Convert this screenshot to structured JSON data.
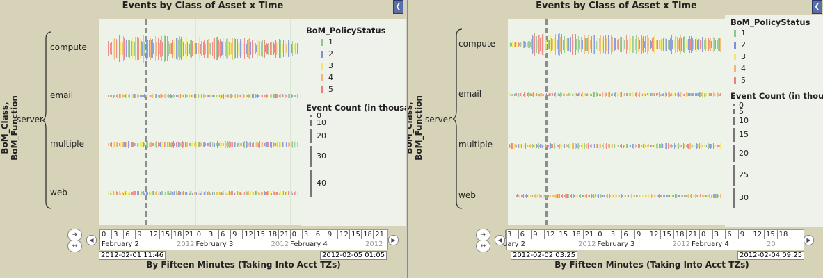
{
  "panels": [
    {
      "title": "Events by Class of Asset x Time",
      "y_title": "BoM_Class, BoM_Function",
      "x_title": "By Fifteen Minutes (Taking Into Acct TZs)",
      "group": "server",
      "rows": [
        "compute",
        "email",
        "multiple",
        "web"
      ],
      "legend_color_title": "BoM_PolicyStatus",
      "legend_color_items": [
        "1",
        "2",
        "3",
        "4",
        "5"
      ],
      "legend_size_title": "Event Count (in thousa",
      "legend_size_items": [
        "0",
        "10",
        "20",
        "30",
        "40"
      ],
      "hour_ticks": [
        "0",
        "3",
        "6",
        "9",
        "12",
        "15",
        "18",
        "21",
        "0",
        "3",
        "6",
        "9",
        "12",
        "15",
        "18",
        "21",
        "0",
        "3",
        "6",
        "9",
        "12",
        "15",
        "18",
        "21"
      ],
      "dates": [
        {
          "label": "February 2",
          "year": "2012"
        },
        {
          "label": "February 3",
          "year": "2012"
        },
        {
          "label": "February 4",
          "year": "2012"
        }
      ],
      "range_start": "2012-02-01 11:46",
      "range_end": "2012-02-05 01:05"
    },
    {
      "title": "Events by Class of Asset x Time",
      "y_title": "BoM_Class, BoM_Function",
      "x_title": "By Fifteen Minutes (Taking Into Acct TZs)",
      "group": "server",
      "rows": [
        "compute",
        "email",
        "multiple",
        "web"
      ],
      "legend_color_title": "BoM_PolicyStatus",
      "legend_color_items": [
        "1",
        "2",
        "3",
        "4",
        "5"
      ],
      "legend_size_title": "Event Count (in thous",
      "legend_size_items": [
        "0",
        "5",
        "10",
        "15",
        "20",
        "25",
        "30"
      ],
      "hour_ticks": [
        "3",
        "6",
        "9",
        "12",
        "15",
        "18",
        "21",
        "0",
        "3",
        "6",
        "9",
        "12",
        "15",
        "18",
        "21",
        "0",
        "3",
        "6",
        "9",
        "12",
        "15",
        "18"
      ],
      "dates": [
        {
          "label": "uary 2",
          "year": "2012"
        },
        {
          "label": "February 3",
          "year": "2012"
        },
        {
          "label": "February 4",
          "year": "20"
        }
      ],
      "range_start": "2012-02-02 03:25",
      "range_end": "2012-02-04 09:25"
    }
  ],
  "colors": {
    "status_1": "#8fc58a",
    "status_2": "#7d8fd8",
    "status_3": "#eee96a",
    "status_4": "#f5b56a",
    "status_5": "#f07d78"
  },
  "chart_data": [
    {
      "type": "scatter",
      "title": "Events by Class of Asset x Time",
      "xlabel": "By Fifteen Minutes (Taking Into Acct TZs)",
      "ylabel": "BoM_Class, BoM_Function",
      "x_range": [
        "2012-02-01 11:46",
        "2012-02-05 01:05"
      ],
      "categories": [
        "server / compute",
        "server / email",
        "server / multiple",
        "server / web"
      ],
      "color_field": "BoM_PolicyStatus",
      "color_values": [
        "1",
        "2",
        "3",
        "4",
        "5"
      ],
      "size_field": "Event Count (in thousands)",
      "size_scale": [
        0,
        10,
        20,
        30,
        40
      ],
      "approx_max_event_count_k": [
        40,
        5,
        8,
        5
      ]
    },
    {
      "type": "scatter",
      "title": "Events by Class of Asset x Time",
      "xlabel": "By Fifteen Minutes (Taking Into Acct TZs)",
      "ylabel": "BoM_Class, BoM_Function",
      "x_range": [
        "2012-02-02 03:25",
        "2012-02-04 09:25"
      ],
      "categories": [
        "server / compute",
        "server / email",
        "server / multiple",
        "server / web"
      ],
      "color_field": "BoM_PolicyStatus",
      "color_values": [
        "1",
        "2",
        "3",
        "4",
        "5"
      ],
      "size_field": "Event Count (in thousands)",
      "size_scale": [
        0,
        5,
        10,
        15,
        20,
        25,
        30
      ],
      "approx_max_event_count_k": [
        30,
        4,
        6,
        4
      ]
    }
  ]
}
